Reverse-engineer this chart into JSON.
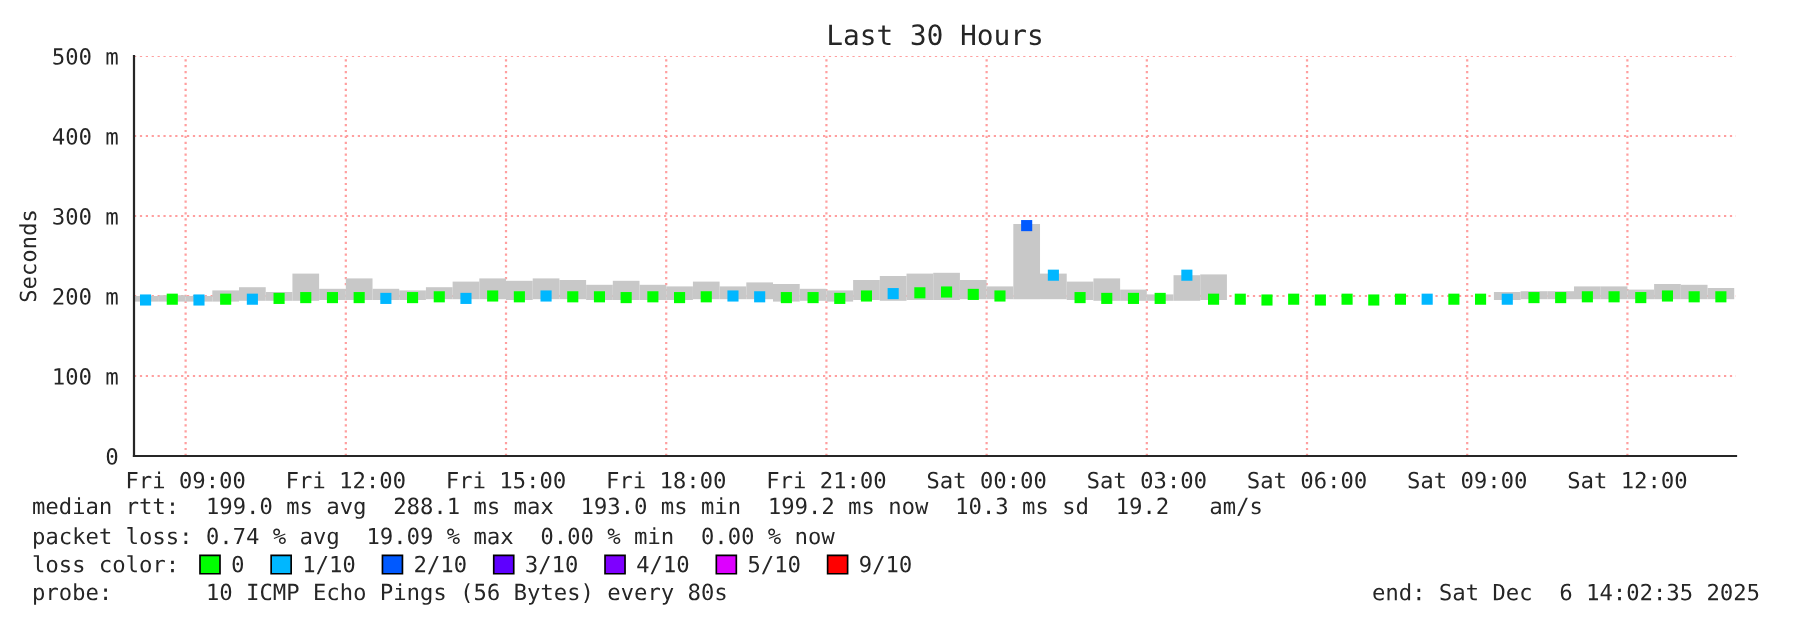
{
  "chart_data": {
    "type": "scatter",
    "title": "Last 30 Hours",
    "ylabel": "Seconds",
    "legend_title": "loss color:",
    "x": [
      "2025-12-05T08:15",
      "2025-12-05T08:45",
      "2025-12-05T09:15",
      "2025-12-05T09:45",
      "2025-12-05T10:15",
      "2025-12-05T10:45",
      "2025-12-05T11:15",
      "2025-12-05T11:45",
      "2025-12-05T12:15",
      "2025-12-05T12:45",
      "2025-12-05T13:15",
      "2025-12-05T13:45",
      "2025-12-05T14:15",
      "2025-12-05T14:45",
      "2025-12-05T15:15",
      "2025-12-05T15:45",
      "2025-12-05T16:15",
      "2025-12-05T16:45",
      "2025-12-05T17:15",
      "2025-12-05T17:45",
      "2025-12-05T18:15",
      "2025-12-05T18:45",
      "2025-12-05T19:15",
      "2025-12-05T19:45",
      "2025-12-05T20:15",
      "2025-12-05T20:45",
      "2025-12-05T21:15",
      "2025-12-05T21:45",
      "2025-12-05T22:15",
      "2025-12-05T22:45",
      "2025-12-05T23:15",
      "2025-12-05T23:45",
      "2025-12-06T00:15",
      "2025-12-06T00:45",
      "2025-12-06T01:15",
      "2025-12-06T01:45",
      "2025-12-06T02:15",
      "2025-12-06T02:45",
      "2025-12-06T03:15",
      "2025-12-06T03:45",
      "2025-12-06T04:15",
      "2025-12-06T04:45",
      "2025-12-06T05:15",
      "2025-12-06T05:45",
      "2025-12-06T06:15",
      "2025-12-06T06:45",
      "2025-12-06T07:15",
      "2025-12-06T07:45",
      "2025-12-06T08:15",
      "2025-12-06T08:45",
      "2025-12-06T09:15",
      "2025-12-06T09:45",
      "2025-12-06T10:15",
      "2025-12-06T10:45",
      "2025-12-06T11:15",
      "2025-12-06T11:45",
      "2025-12-06T12:15",
      "2025-12-06T12:45",
      "2025-12-06T13:15",
      "2025-12-06T13:45"
    ],
    "series": [
      {
        "type": "bar",
        "color": "#c8c8c8",
        "base": [
          193,
          193,
          193,
          193,
          194,
          194,
          194,
          195,
          195,
          195,
          195,
          196,
          196,
          196,
          195,
          196,
          196,
          195,
          195,
          195,
          195,
          196,
          196,
          196,
          193,
          194,
          193,
          195,
          194,
          195,
          195,
          196,
          196,
          196,
          196,
          195,
          194,
          194,
          194,
          194,
          195,
          null,
          null,
          null,
          null,
          null,
          null,
          null,
          null,
          null,
          null,
          195,
          196,
          196,
          196,
          196,
          196,
          196,
          196,
          196
        ],
        "values": [
          7,
          8,
          7,
          14,
          17,
          11,
          34,
          14,
          27,
          14,
          12,
          15,
          22,
          26,
          24,
          26,
          24,
          19,
          24,
          19,
          17,
          22,
          16,
          21,
          22,
          15,
          14,
          25,
          31,
          33,
          34,
          24,
          16,
          94,
          32,
          23,
          28,
          14,
          8,
          32,
          32,
          null,
          null,
          null,
          null,
          null,
          null,
          null,
          null,
          null,
          null,
          10,
          10,
          10,
          16,
          16,
          12,
          19,
          18,
          14
        ]
      },
      {
        "name": "0",
        "color": "#00ff00",
        "values": [
          null,
          196,
          null,
          196,
          null,
          197,
          198,
          198,
          198,
          null,
          198,
          199,
          null,
          200,
          199,
          null,
          199,
          199,
          198,
          199,
          198,
          199,
          null,
          null,
          198,
          198,
          197,
          200,
          null,
          204,
          205,
          202,
          200,
          null,
          null,
          198,
          197,
          197,
          197,
          null,
          196,
          196,
          195,
          196,
          195,
          196,
          195,
          196,
          null,
          196,
          196,
          null,
          198,
          198,
          199,
          199,
          198,
          200,
          199,
          199
        ]
      },
      {
        "name": "1/10",
        "color": "#00b7ff",
        "values": [
          195,
          null,
          195,
          null,
          196,
          null,
          null,
          null,
          null,
          197,
          null,
          null,
          197,
          null,
          null,
          200,
          null,
          null,
          null,
          null,
          null,
          null,
          200,
          199,
          null,
          null,
          null,
          null,
          203,
          null,
          null,
          null,
          null,
          null,
          226,
          null,
          null,
          null,
          null,
          226,
          null,
          null,
          null,
          null,
          null,
          null,
          null,
          null,
          196,
          null,
          null,
          196,
          null,
          null,
          null,
          null,
          null,
          null,
          null,
          null
        ]
      },
      {
        "name": "2/10",
        "color": "#0059ff",
        "values": [
          null,
          null,
          null,
          null,
          null,
          null,
          null,
          null,
          null,
          null,
          null,
          null,
          null,
          null,
          null,
          null,
          null,
          null,
          null,
          null,
          null,
          null,
          null,
          null,
          null,
          null,
          null,
          null,
          null,
          null,
          null,
          null,
          null,
          288,
          null,
          null,
          null,
          null,
          null,
          null,
          null,
          null,
          null,
          null,
          null,
          null,
          null,
          null,
          null,
          null,
          null,
          null,
          null,
          null,
          null,
          null,
          null,
          null,
          null,
          null
        ]
      },
      {
        "name": "3/10",
        "color": "#5e00ff",
        "values": [
          null,
          null,
          null,
          null,
          null,
          null,
          null,
          null,
          null,
          null,
          null,
          null,
          null,
          null,
          null,
          null,
          null,
          null,
          null,
          null,
          null,
          null,
          null,
          null,
          null,
          null,
          null,
          null,
          null,
          null,
          null,
          null,
          null,
          null,
          null,
          null,
          null,
          null,
          null,
          null,
          null,
          null,
          null,
          null,
          null,
          null,
          null,
          null,
          null,
          null,
          null,
          null,
          null,
          null,
          null,
          null,
          null,
          null,
          null,
          null
        ]
      },
      {
        "name": "4/10",
        "color": "#7e00ff",
        "values": [
          null,
          null,
          null,
          null,
          null,
          null,
          null,
          null,
          null,
          null,
          null,
          null,
          null,
          null,
          null,
          null,
          null,
          null,
          null,
          null,
          null,
          null,
          null,
          null,
          null,
          null,
          null,
          null,
          null,
          null,
          null,
          null,
          null,
          null,
          null,
          null,
          null,
          null,
          null,
          null,
          null,
          null,
          null,
          null,
          null,
          null,
          null,
          null,
          null,
          null,
          null,
          null,
          null,
          null,
          null,
          null,
          null,
          null,
          null,
          null
        ]
      },
      {
        "name": "5/10",
        "color": "#dd00ff",
        "values": [
          null,
          null,
          null,
          null,
          null,
          null,
          null,
          null,
          null,
          null,
          null,
          null,
          null,
          null,
          null,
          null,
          null,
          null,
          null,
          null,
          null,
          null,
          null,
          null,
          null,
          null,
          null,
          null,
          null,
          null,
          null,
          null,
          null,
          null,
          null,
          null,
          null,
          null,
          null,
          null,
          null,
          null,
          null,
          null,
          null,
          null,
          null,
          null,
          null,
          null,
          null,
          null,
          null,
          null,
          null,
          null,
          null,
          null,
          null,
          null
        ]
      },
      {
        "name": "9/10",
        "color": "#ff0000",
        "values": [
          null,
          null,
          null,
          null,
          null,
          null,
          null,
          null,
          null,
          null,
          null,
          null,
          null,
          null,
          null,
          null,
          null,
          null,
          null,
          null,
          null,
          null,
          null,
          null,
          null,
          null,
          null,
          null,
          null,
          null,
          null,
          null,
          null,
          null,
          null,
          null,
          null,
          null,
          null,
          null,
          null,
          null,
          null,
          null,
          null,
          null,
          null,
          null,
          null,
          null,
          null,
          null,
          null,
          null,
          null,
          null,
          null,
          null,
          null,
          null
        ]
      }
    ],
    "xlim": [
      "2025-12-05T08:02",
      "2025-12-06T14:02"
    ],
    "xticks": [
      {
        "value": "2025-12-05T09:00",
        "label": "Fri 09:00"
      },
      {
        "value": "2025-12-05T12:00",
        "label": "Fri 12:00"
      },
      {
        "value": "2025-12-05T15:00",
        "label": "Fri 15:00"
      },
      {
        "value": "2025-12-05T18:00",
        "label": "Fri 18:00"
      },
      {
        "value": "2025-12-05T21:00",
        "label": "Fri 21:00"
      },
      {
        "value": "2025-12-06T00:00",
        "label": "Sat 00:00"
      },
      {
        "value": "2025-12-06T03:00",
        "label": "Sat 03:00"
      },
      {
        "value": "2025-12-06T06:00",
        "label": "Sat 06:00"
      },
      {
        "value": "2025-12-06T09:00",
        "label": "Sat 09:00"
      },
      {
        "value": "2025-12-06T12:00",
        "label": "Sat 12:00"
      }
    ],
    "ylim": [
      0,
      500
    ],
    "yticks": [
      0,
      {
        "value": 100,
        "label": "100 m"
      },
      {
        "value": 200,
        "label": "200 m"
      },
      {
        "value": 300,
        "label": "300 m"
      },
      {
        "value": 400,
        "label": "400 m"
      },
      {
        "value": 500,
        "label": "500 m"
      }
    ],
    "grid": true,
    "legend": "bottom",
    "marker": "square",
    "annotations": [
      "median rtt:  199.0 ms avg  288.1 ms max  193.0 ms min  199.2 ms now  10.3 ms sd  19.2   am/s",
      "packet loss: 0.74 % avg  19.09 % max  0.00 % min  0.00 % now",
      "probe:       10 ICMP Echo Pings (56 Bytes) every 80s",
      "end: Sat Dec  6 14:02:35 2025"
    ]
  }
}
